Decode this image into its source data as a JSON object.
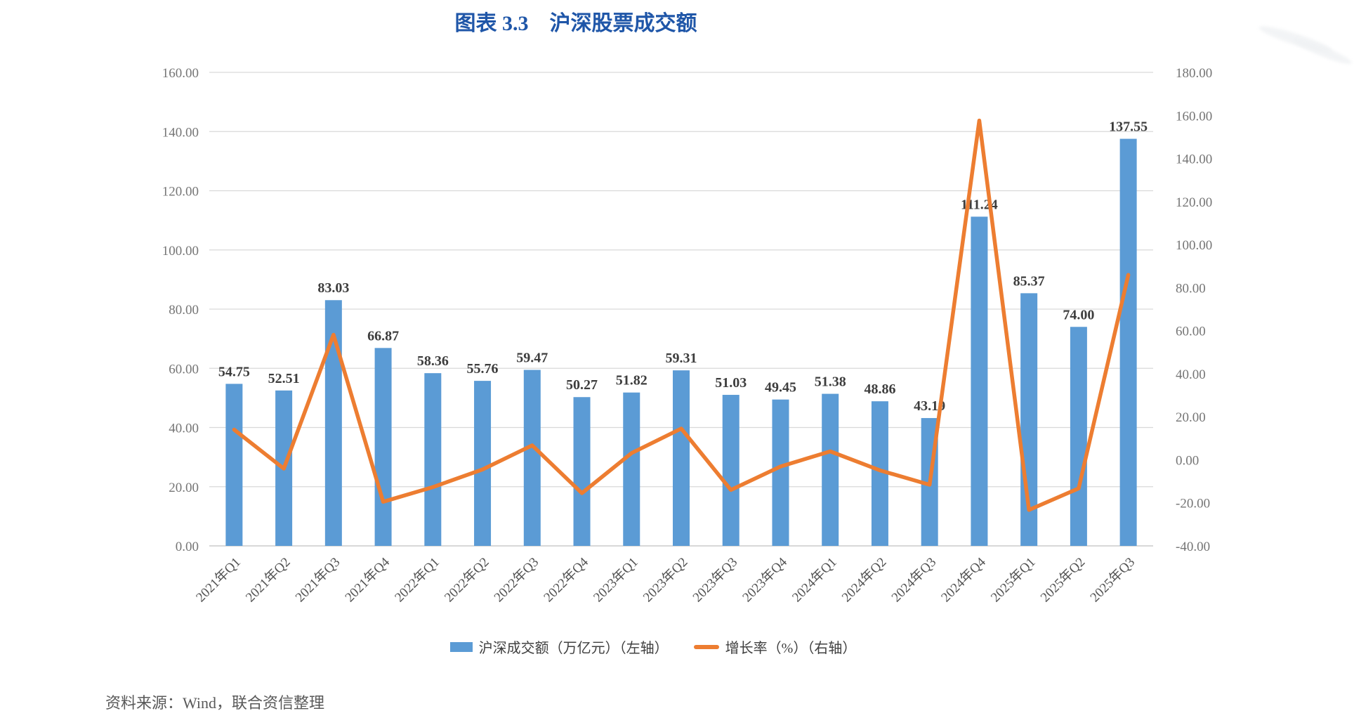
{
  "page": {
    "title": "图表 3.3　沪深股票成交额",
    "source_note": "资料来源：Wind，联合资信整理"
  },
  "colors": {
    "bar": "#5B9BD5",
    "line": "#ED7D31",
    "title_text": "#1F56A8",
    "tick_text": "#757575",
    "category_text": "#535353",
    "data_label_text": "#3d3d3d",
    "gridline": "#D9D9D9",
    "baseline": "#C0C0C0",
    "legend_text": "#404040",
    "source_text": "#595959"
  },
  "chart_data": {
    "type": "bar+line combo",
    "title": "图表 3.3　沪深股票成交额",
    "categories": [
      "2021年Q1",
      "2021年Q2",
      "2021年Q3",
      "2021年Q4",
      "2022年Q1",
      "2022年Q2",
      "2022年Q3",
      "2022年Q4",
      "2023年Q1",
      "2023年Q2",
      "2023年Q3",
      "2023年Q4",
      "2024年Q1",
      "2024年Q2",
      "2024年Q3",
      "2024年Q4",
      "2025年Q1",
      "2025年Q2",
      "2025年Q3"
    ],
    "series": [
      {
        "name": "沪深成交额（万亿元）（左轴）",
        "type": "bar",
        "axis": "left",
        "values": [
          54.75,
          52.51,
          83.03,
          66.87,
          58.36,
          55.76,
          59.47,
          50.27,
          51.82,
          59.31,
          51.03,
          49.45,
          51.38,
          48.86,
          43.19,
          111.24,
          85.37,
          74.0,
          137.55
        ],
        "data_labels_visible": true
      },
      {
        "name": "增长率（%）（右轴）",
        "type": "line",
        "axis": "right",
        "values_estimated_from_plot": true,
        "values": [
          14.0,
          -4.1,
          58.1,
          -19.5,
          -12.7,
          -4.5,
          6.7,
          -15.5,
          3.1,
          14.5,
          -14.0,
          -3.1,
          3.9,
          -4.9,
          -11.6,
          157.6,
          -23.3,
          -13.3,
          85.9
        ],
        "data_labels_visible": false
      }
    ],
    "left_axis": {
      "min": 0,
      "max": 160,
      "step": 20,
      "tick_format": "0.00"
    },
    "right_axis": {
      "min": -40,
      "max": 180,
      "step": 20,
      "tick_format": "0.00"
    },
    "grid": "horizontal gridlines on left-axis ticks",
    "legend_position": "bottom",
    "category_label_rotation_deg": -45
  }
}
